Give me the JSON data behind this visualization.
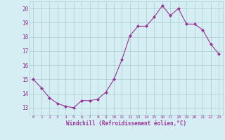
{
  "x": [
    0,
    1,
    2,
    3,
    4,
    5,
    6,
    7,
    8,
    9,
    10,
    11,
    12,
    13,
    14,
    15,
    16,
    17,
    18,
    19,
    20,
    21,
    22,
    23
  ],
  "y": [
    15.0,
    14.4,
    13.7,
    13.3,
    13.1,
    13.0,
    13.5,
    13.5,
    13.6,
    14.1,
    15.0,
    16.4,
    18.1,
    18.75,
    18.75,
    19.4,
    20.2,
    19.5,
    20.0,
    18.9,
    18.9,
    18.5,
    17.5,
    16.8
  ],
  "line_color": "#993399",
  "marker": "D",
  "marker_size": 2,
  "xlim": [
    -0.5,
    23.5
  ],
  "ylim": [
    12.5,
    20.5
  ],
  "yticks": [
    13,
    14,
    15,
    16,
    17,
    18,
    19,
    20
  ],
  "xticks": [
    0,
    1,
    2,
    3,
    4,
    5,
    6,
    7,
    8,
    9,
    10,
    11,
    12,
    13,
    14,
    15,
    16,
    17,
    18,
    19,
    20,
    21,
    22,
    23
  ],
  "xlabel": "Windchill (Refroidissement éolien,°C)",
  "bg_color": "#d4eef4",
  "grid_color": "#aacccc"
}
